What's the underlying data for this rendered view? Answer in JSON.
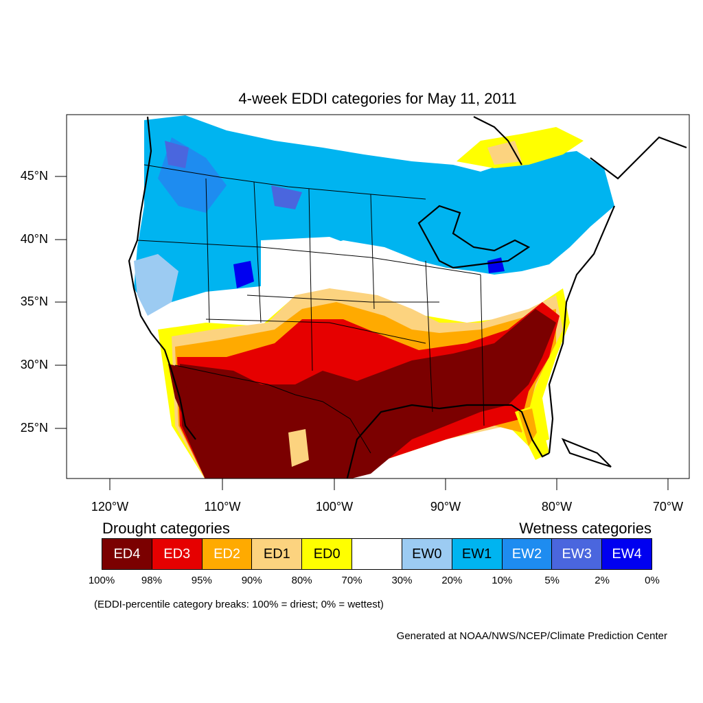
{
  "title": "4-week EDDI categories for May 11, 2011",
  "latitude_labels": [
    "45°N",
    "40°N",
    "35°N",
    "30°N",
    "25°N"
  ],
  "longitude_labels": [
    "120°W",
    "110°W",
    "100°W",
    "90°W",
    "80°W",
    "70°W"
  ],
  "drought_heading": "Drought categories",
  "wetness_heading": "Wetness categories",
  "legend": [
    {
      "label": "ED4",
      "color": "#7b0000",
      "text_color": "#ffffff"
    },
    {
      "label": "ED3",
      "color": "#e60000",
      "text_color": "#ffffff"
    },
    {
      "label": "ED2",
      "color": "#ffaa00",
      "text_color": "#ffffff"
    },
    {
      "label": "ED1",
      "color": "#fcd37f",
      "text_color": "#000000"
    },
    {
      "label": "ED0",
      "color": "#ffff00",
      "text_color": "#000000"
    },
    {
      "label": "",
      "color": "#ffffff",
      "text_color": "#000000"
    },
    {
      "label": "EW0",
      "color": "#9ccbf2",
      "text_color": "#000000"
    },
    {
      "label": "EW1",
      "color": "#00b4f0",
      "text_color": "#000000"
    },
    {
      "label": "EW2",
      "color": "#1e8cf0",
      "text_color": "#ffffff"
    },
    {
      "label": "EW3",
      "color": "#4a66de",
      "text_color": "#ffffff"
    },
    {
      "label": "EW4",
      "color": "#0000f0",
      "text_color": "#ffffff"
    }
  ],
  "break_labels": [
    "100%",
    "98%",
    "95%",
    "90%",
    "80%",
    "70%",
    "30%",
    "20%",
    "10%",
    "5%",
    "2%",
    "0%"
  ],
  "breaks_note": "(EDDI-percentile category breaks: 100% = driest; 0% = wettest)",
  "credit": "Generated at NOAA/NWS/NCEP/Climate Prediction Center"
}
